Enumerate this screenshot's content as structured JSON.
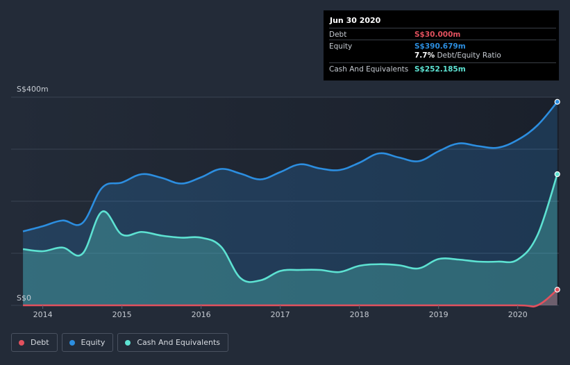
{
  "chart_data": {
    "type": "area",
    "title": "",
    "xlabel": "",
    "ylabel": "",
    "y_tick_labels": [
      "S$0",
      "S$400m"
    ],
    "ylim": [
      0,
      400
    ],
    "xlim": [
      2013.6,
      2020.52
    ],
    "x_ticks": [
      2014,
      2015,
      2016,
      2017,
      2018,
      2019,
      2020
    ],
    "x_tick_labels": [
      "2014",
      "2015",
      "2016",
      "2017",
      "2018",
      "2019",
      "2020"
    ],
    "grid": true,
    "legend_position": "bottom-left",
    "series": [
      {
        "name": "Debt",
        "color": "#e2515e",
        "x": [
          2013.75,
          2014.0,
          2015.0,
          2016.0,
          2017.0,
          2018.0,
          2019.0,
          2020.0,
          2020.25,
          2020.5
        ],
        "values": [
          0,
          0,
          0,
          0,
          0,
          0,
          0,
          0,
          0,
          30
        ]
      },
      {
        "name": "Equity",
        "color": "#2c8ee0",
        "x": [
          2013.75,
          2014.0,
          2014.25,
          2014.5,
          2014.75,
          2015.0,
          2015.25,
          2015.5,
          2015.75,
          2016.0,
          2016.25,
          2016.5,
          2016.75,
          2017.0,
          2017.25,
          2017.5,
          2017.75,
          2018.0,
          2018.25,
          2018.5,
          2018.75,
          2019.0,
          2019.25,
          2019.5,
          2019.75,
          2020.0,
          2020.25,
          2020.5
        ],
        "values": [
          142,
          152,
          163,
          158,
          226,
          236,
          252,
          245,
          234,
          246,
          262,
          253,
          242,
          256,
          271,
          263,
          260,
          274,
          292,
          284,
          277,
          296,
          311,
          306,
          303,
          318,
          346,
          391
        ]
      },
      {
        "name": "Cash And Equivalents",
        "color": "#5de2d2",
        "x": [
          2013.75,
          2014.0,
          2014.25,
          2014.5,
          2014.75,
          2015.0,
          2015.25,
          2015.5,
          2015.75,
          2016.0,
          2016.25,
          2016.5,
          2016.75,
          2017.0,
          2017.25,
          2017.5,
          2017.75,
          2018.0,
          2018.25,
          2018.5,
          2018.75,
          2019.0,
          2019.25,
          2019.5,
          2019.75,
          2020.0,
          2020.25,
          2020.5
        ],
        "values": [
          108,
          104,
          111,
          99,
          180,
          136,
          141,
          134,
          130,
          130,
          113,
          52,
          48,
          66,
          68,
          68,
          64,
          76,
          79,
          77,
          71,
          89,
          88,
          84,
          84,
          88,
          135,
          252
        ]
      }
    ]
  },
  "tooltip": {
    "date": "Jun 30 2020",
    "rows": [
      {
        "label": "Debt",
        "value": "S$30.000m",
        "color": "#e2515e"
      },
      {
        "label": "Equity",
        "value": "S$390.679m",
        "color": "#2c8ee0"
      },
      {
        "label": "Cash And Equivalents",
        "value": "S$252.185m",
        "color": "#5de2d2"
      }
    ],
    "ratio_value": "7.7%",
    "ratio_label": "Debt/Equity Ratio"
  },
  "legend": [
    {
      "label": "Debt",
      "color": "#e2515e"
    },
    {
      "label": "Equity",
      "color": "#2c8ee0"
    },
    {
      "label": "Cash And Equivalents",
      "color": "#5de2d2"
    }
  ]
}
